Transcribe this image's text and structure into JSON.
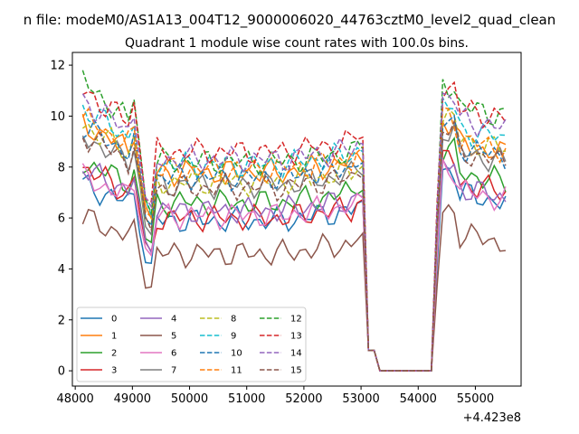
{
  "figure": {
    "suptitle": "n file: modeM0/AS1A13_004T12_9000006020_44763cztM0_level2_quad_clean",
    "title": "Quadrant 1 module wise count rates with 100.0s bins.",
    "x_offset_label": "+4.423e8"
  },
  "chart_data": {
    "type": "line",
    "title": "Quadrant 1 module wise count rates with 100.0s bins.",
    "xlabel": "",
    "ylabel": "",
    "x_offset": 442300000,
    "xlim": [
      47950,
      55800
    ],
    "ylim": [
      -0.6,
      12.5
    ],
    "xticks": [
      48000,
      49000,
      50000,
      51000,
      52000,
      53000,
      54000,
      55000
    ],
    "xtick_labels": [
      "48000",
      "49000",
      "50000",
      "51000",
      "52000",
      "53000",
      "54000",
      "55000"
    ],
    "yticks": [
      0,
      2,
      4,
      6,
      8,
      10,
      12
    ],
    "ytick_labels": [
      "0",
      "2",
      "4",
      "6",
      "8",
      "10",
      "12"
    ],
    "grid": false,
    "legend_position": "lower-left",
    "legend_columns": 4,
    "x": [
      48130,
      48230,
      48330,
      48430,
      48530,
      48630,
      48730,
      48830,
      48930,
      49030,
      49130,
      49230,
      49330,
      49430,
      49530,
      49630,
      49730,
      49830,
      49930,
      50030,
      50130,
      50230,
      50330,
      50430,
      50530,
      50630,
      50730,
      50830,
      50930,
      51030,
      51130,
      51230,
      51330,
      51430,
      51530,
      51630,
      51730,
      51830,
      51930,
      52030,
      52130,
      52230,
      52330,
      52430,
      52530,
      52630,
      52730,
      52830,
      52930,
      53030,
      53130,
      53230,
      53330,
      53430,
      53530,
      53630,
      53730,
      53830,
      53930,
      54030,
      54130,
      54230,
      54330,
      54430,
      54530,
      54630,
      54730,
      54830,
      54930,
      55030,
      55130,
      55230,
      55330,
      55430,
      55530
    ],
    "series": [
      {
        "name": "0",
        "color": "#1f77b4",
        "dash": false,
        "base": 7.3,
        "mid": 5.9,
        "post": 7.1,
        "dip": 4.1
      },
      {
        "name": "1",
        "color": "#ff7f0e",
        "dash": false,
        "base": 9.7,
        "mid": 7.8,
        "post": 9.0,
        "dip": 6.0
      },
      {
        "name": "2",
        "color": "#2ca02c",
        "dash": false,
        "base": 8.2,
        "mid": 6.6,
        "post": 7.9,
        "dip": 5.0
      },
      {
        "name": "3",
        "color": "#d62728",
        "dash": false,
        "base": 8.0,
        "mid": 6.0,
        "post": 7.5,
        "dip": 4.6
      },
      {
        "name": "4",
        "color": "#9467bd",
        "dash": false,
        "base": 7.9,
        "mid": 6.3,
        "post": 7.3,
        "dip": 4.8
      },
      {
        "name": "5",
        "color": "#8c564b",
        "dash": false,
        "base": 6.0,
        "mid": 4.6,
        "post": 5.5,
        "dip": 3.3
      },
      {
        "name": "6",
        "color": "#e377c2",
        "dash": false,
        "base": 7.6,
        "mid": 6.1,
        "post": 7.2,
        "dip": 4.5
      },
      {
        "name": "7",
        "color": "#7f7f7f",
        "dash": false,
        "base": 9.2,
        "mid": 7.3,
        "post": 8.7,
        "dip": 5.4
      },
      {
        "name": "8",
        "color": "#bcbd22",
        "dash": true,
        "base": 9.7,
        "mid": 7.4,
        "post": 9.2,
        "dip": 5.6
      },
      {
        "name": "9",
        "color": "#17becf",
        "dash": true,
        "base": 10.3,
        "mid": 8.1,
        "post": 9.6,
        "dip": 6.1
      },
      {
        "name": "10",
        "color": "#1f77b4",
        "dash": true,
        "base": 9.6,
        "mid": 7.6,
        "post": 8.9,
        "dip": 5.8
      },
      {
        "name": "11",
        "color": "#ff7f0e",
        "dash": true,
        "base": 9.9,
        "mid": 7.9,
        "post": 9.2,
        "dip": 6.0
      },
      {
        "name": "12",
        "color": "#2ca02c",
        "dash": true,
        "base": 11.4,
        "mid": 8.2,
        "post": 10.5,
        "dip": 6.3
      },
      {
        "name": "13",
        "color": "#d62728",
        "dash": true,
        "base": 11.0,
        "mid": 8.6,
        "post": 10.4,
        "dip": 6.6
      },
      {
        "name": "14",
        "color": "#9467bd",
        "dash": true,
        "base": 10.6,
        "mid": 8.3,
        "post": 10.0,
        "dip": 6.3
      },
      {
        "name": "15",
        "color": "#8c564b",
        "dash": true,
        "base": 9.3,
        "mid": 7.2,
        "post": 8.7,
        "dip": 5.6
      }
    ]
  }
}
